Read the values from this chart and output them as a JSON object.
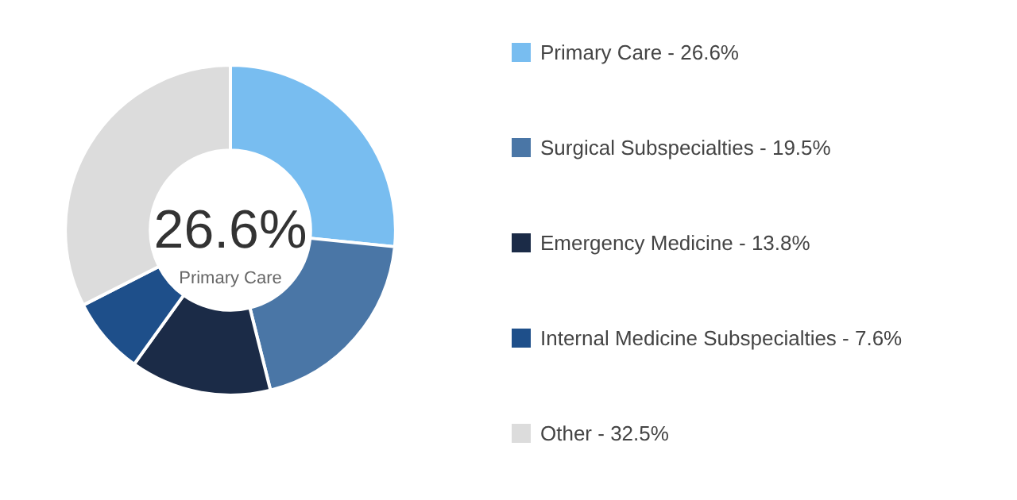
{
  "chart_data": {
    "type": "donut",
    "categories": [
      "Primary Care - 26.6%",
      "Surgical Subspecialties - 19.5%",
      "Emergency Medicine - 13.8%",
      "Internal Medicine Subspecialties - 7.6%",
      "Other - 32.5%"
    ],
    "values": [
      26.6,
      19.5,
      13.8,
      7.6,
      32.5
    ],
    "colors": [
      "#78bdf0",
      "#4a76a6",
      "#1b2b47",
      "#1e4f8a",
      "#dcdcdc"
    ],
    "annotations": [
      "26.6%",
      "Primary Care"
    ],
    "legend": "right"
  }
}
